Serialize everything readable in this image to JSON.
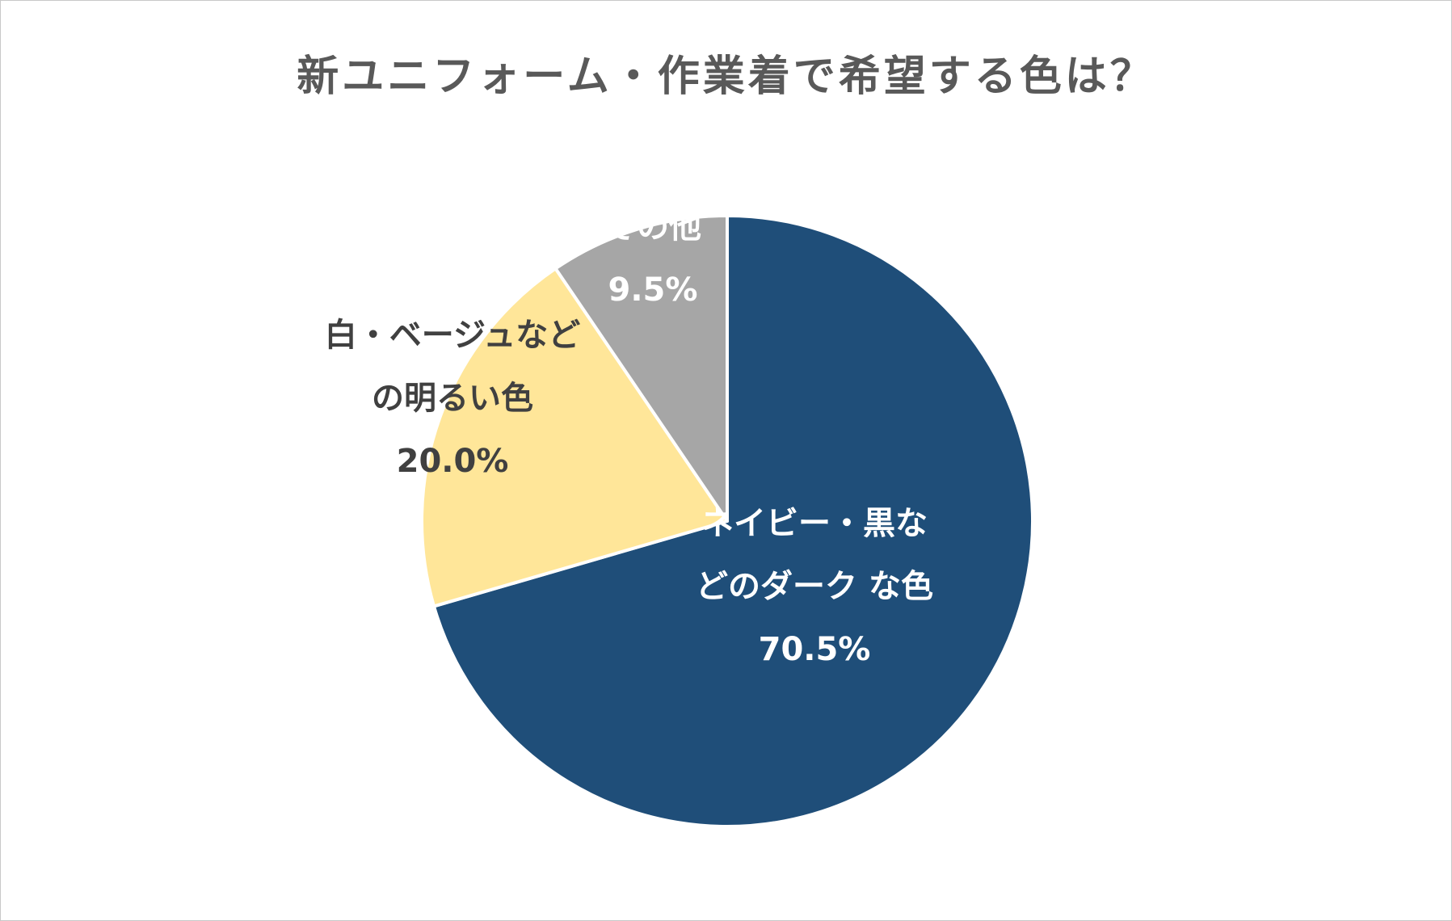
{
  "chart_data": {
    "type": "pie",
    "title": "新ユニフォーム・作業着で希望する色は？",
    "slices": [
      {
        "label_lines": [
          "ネイビー・黒な",
          "どのダーク な色"
        ],
        "value": 70.5,
        "value_label": "70.5%",
        "color": "#1f4e79",
        "text_color": "#ffffff"
      },
      {
        "label_lines": [
          "白・ベージュなど",
          "の明るい色"
        ],
        "value": 20.0,
        "value_label": "20.0%",
        "color": "#ffe699",
        "text_color": "#404040"
      },
      {
        "label_lines": [
          "その他"
        ],
        "value": 9.5,
        "value_label": "9.5%",
        "color": "#a6a6a6",
        "text_color": "#ffffff"
      }
    ],
    "start_angle": "12 o'clock",
    "direction": "clockwise",
    "legend": "none"
  }
}
